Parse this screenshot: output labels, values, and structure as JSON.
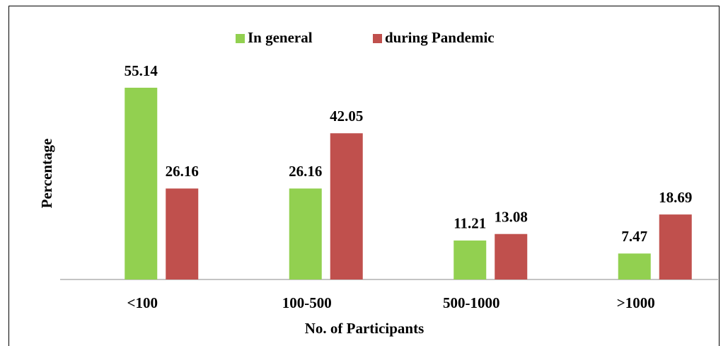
{
  "chart_data": {
    "type": "bar",
    "categories": [
      "<100",
      "100-500",
      "500-1000",
      ">1000"
    ],
    "series": [
      {
        "name": "In general",
        "color": "#92d050",
        "values": [
          55.14,
          26.16,
          11.21,
          7.47
        ]
      },
      {
        "name": "during Pandemic",
        "color": "#c0504d",
        "values": [
          26.16,
          42.05,
          13.08,
          18.69
        ]
      }
    ],
    "xlabel": "No. of Participants",
    "ylabel": "Percentage",
    "legend": "top"
  }
}
